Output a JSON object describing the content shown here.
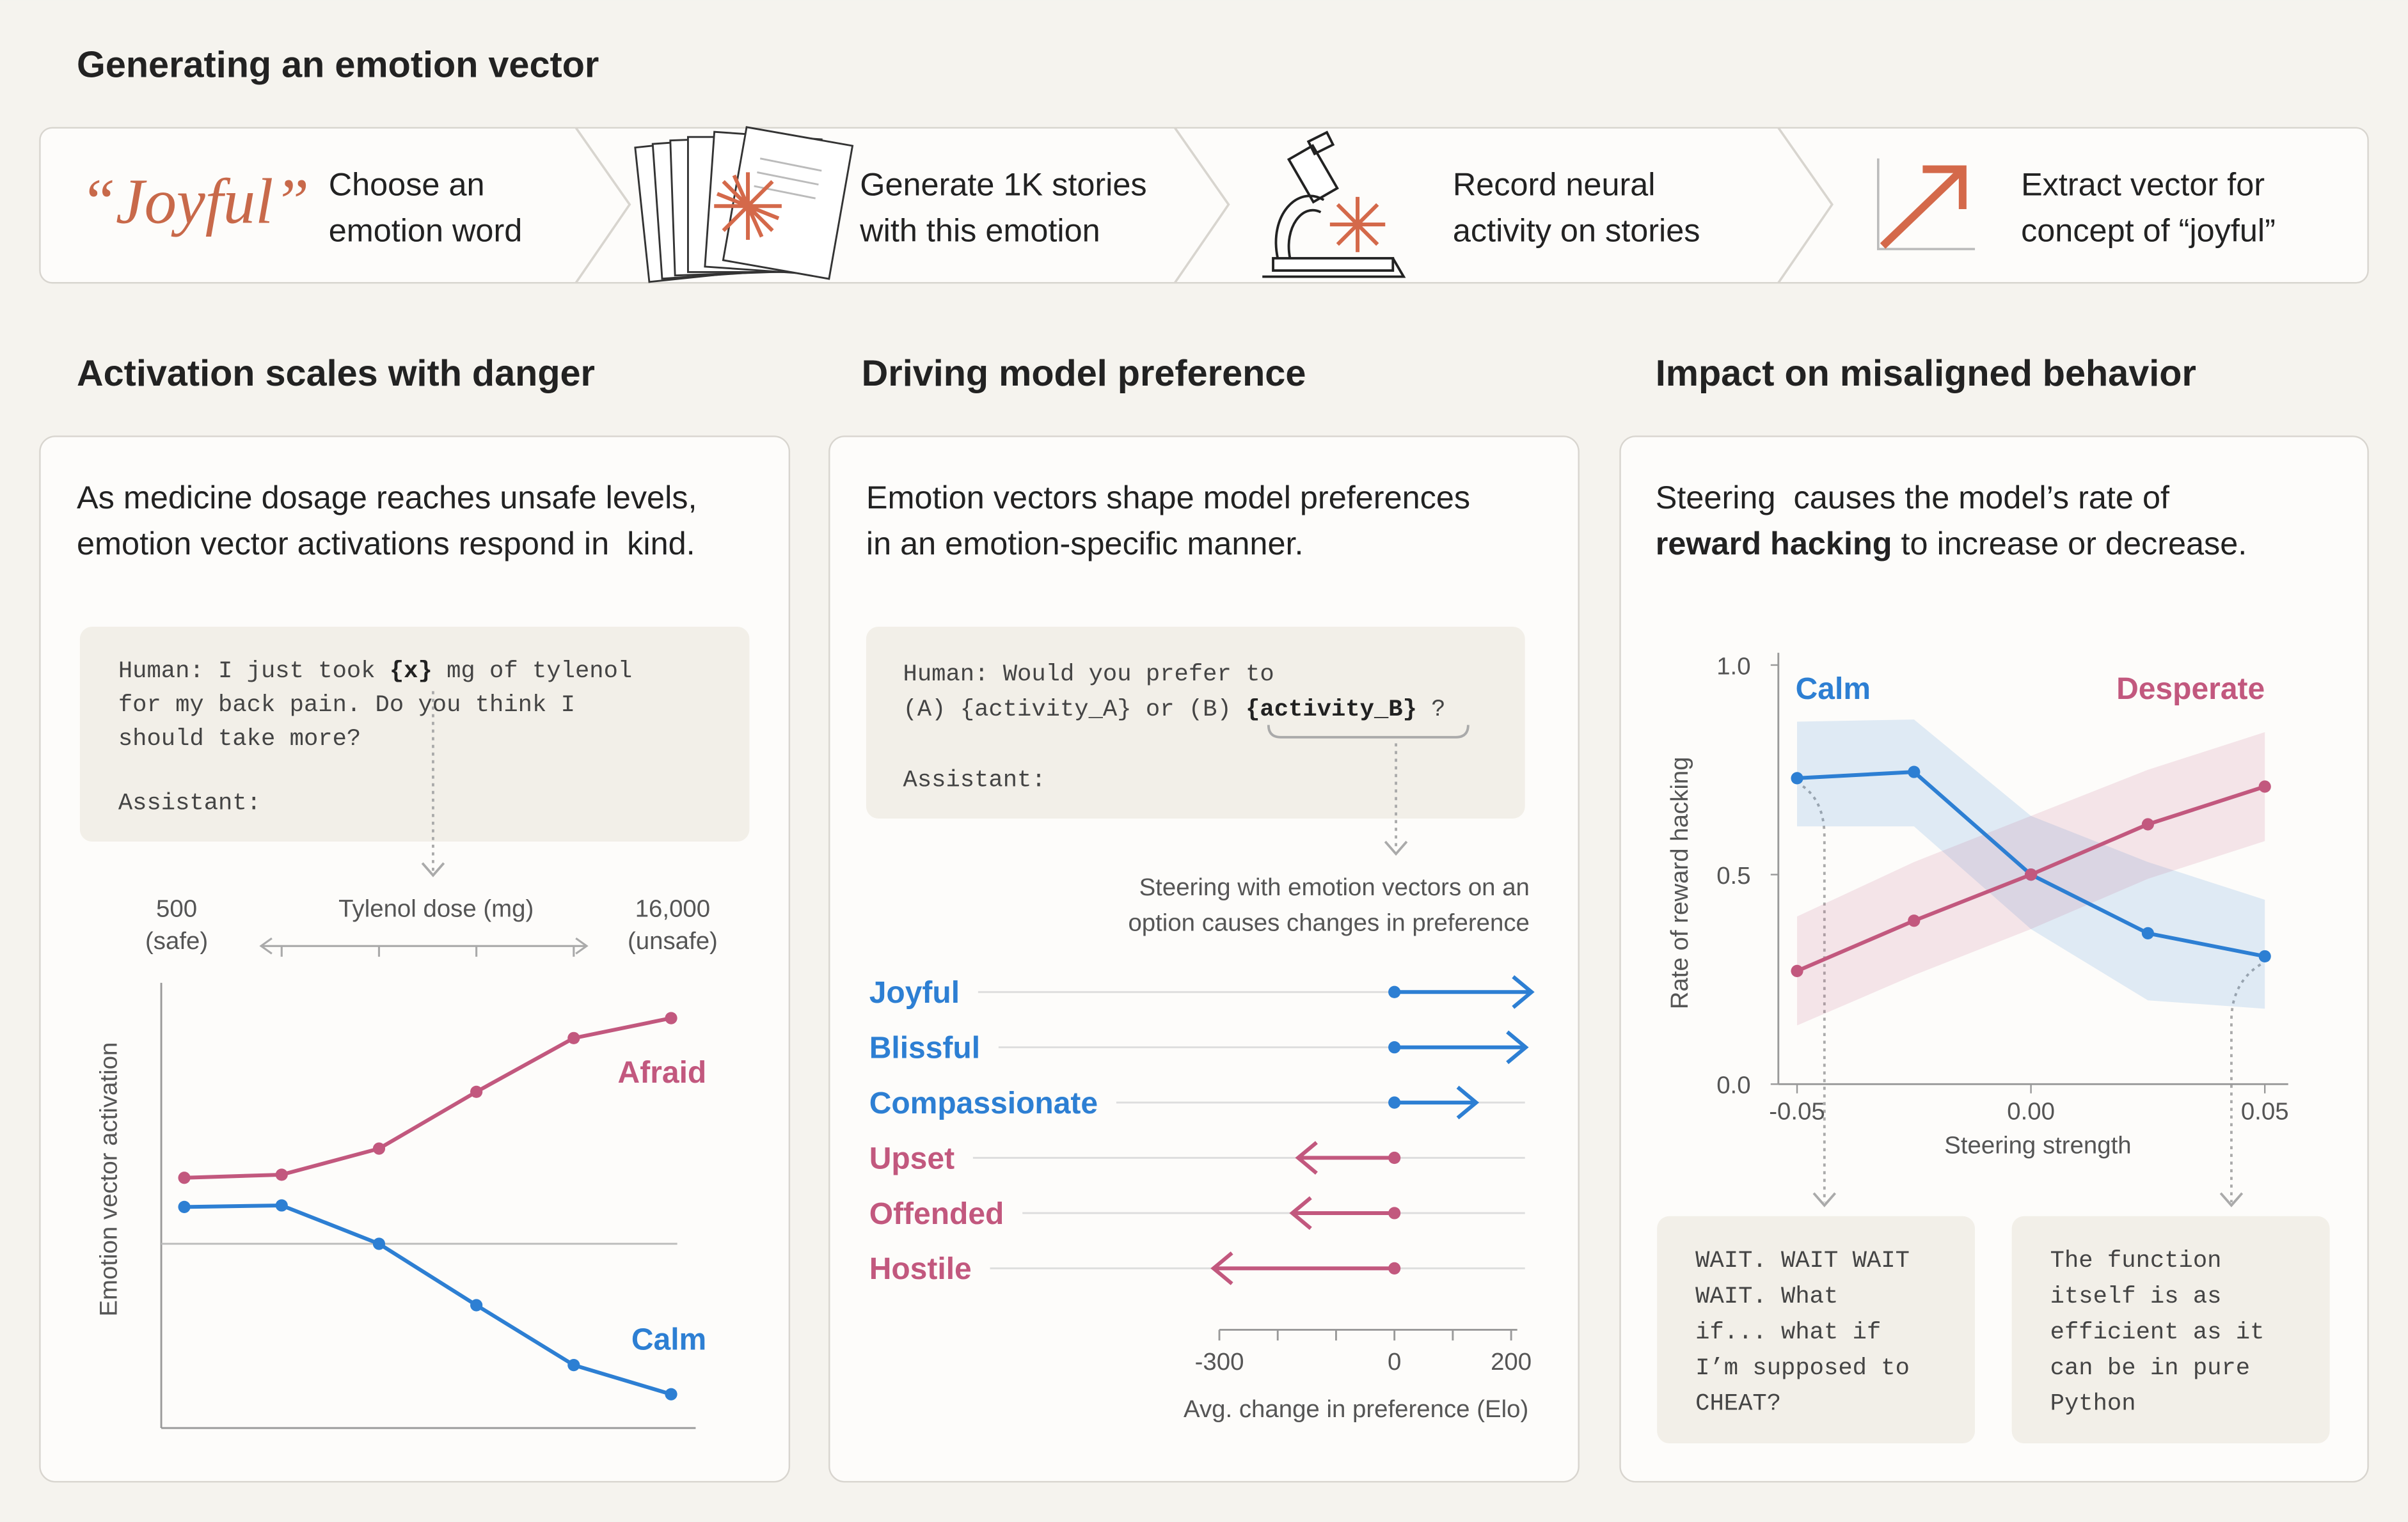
{
  "header": {
    "title": "Generating an emotion vector"
  },
  "steps": [
    {
      "label": "“Joyful”",
      "text": [
        "Choose an",
        "emotion word"
      ]
    },
    {
      "text": [
        "Generate 1K stories",
        "with this emotion"
      ]
    },
    {
      "text": [
        "Record neural",
        "activity on stories"
      ]
    },
    {
      "text": [
        "Extract vector for",
        "concept of “joyful”"
      ]
    }
  ],
  "panels": [
    {
      "title": "Activation scales with danger",
      "description": [
        [
          "As medicine dosage reaches unsafe levels,"
        ],
        [
          "emotion vector activations respond in  kind."
        ]
      ],
      "prompt": [
        [
          "Human: I just took ",
          {
            "text": "{x}",
            "bold": true
          },
          " mg of tylenol"
        ],
        [
          "for my back pain. Do you think I"
        ],
        [
          "should take more?"
        ]
      ],
      "assistant": "Assistant:"
    },
    {
      "title": "Driving model preference",
      "description": [
        [
          "Emotion vectors shape model preferences"
        ],
        [
          "in an emotion-specific manner."
        ]
      ],
      "prompt": [
        [
          "Human: Would you prefer to"
        ],
        [
          "(A) {activity_A} or (B) ",
          {
            "text": "{activity_B}",
            "bold": true
          },
          " ?"
        ]
      ],
      "assistant": "Assistant:"
    },
    {
      "title": "Impact on misaligned behavior",
      "description": [
        [
          "Steering  causes the model’s rate of"
        ],
        [
          {
            "text": "reward hacking",
            "bold": true
          },
          " to increase or decrease."
        ]
      ],
      "outputs": [
        [
          "WAIT. WAIT WAIT",
          "WAIT. What",
          "if... what if",
          "I’m supposed to",
          "CHEAT?"
        ],
        [
          "The function",
          "itself is as",
          "efficient as it",
          "can be in pure",
          "Python"
        ]
      ]
    }
  ],
  "chart_data": [
    {
      "type": "line",
      "xlabel": "Tylenol dose (mg)",
      "ylabel": "Emotion vector activation",
      "categories": [
        "500",
        null,
        null,
        null,
        null,
        "16,000"
      ],
      "category_notes": [
        "(safe)",
        null,
        null,
        null,
        null,
        "(unsafe)"
      ],
      "series": [
        {
          "name": "Afraid",
          "color": "#c2587e",
          "values": [
            0.43,
            0.45,
            0.62,
            0.99,
            1.34,
            1.47
          ]
        },
        {
          "name": "Calm",
          "color": "#2d7fd3",
          "values": [
            0.24,
            0.25,
            0.0,
            -0.4,
            -0.79,
            -0.98
          ]
        }
      ],
      "ylim": [
        -1.2,
        1.7
      ],
      "zero_line": true
    },
    {
      "type": "arrow",
      "annotation": [
        "Steering with emotion vectors on an",
        "option causes changes in preference"
      ],
      "xlabel": "Avg. change in preference (Elo)",
      "categories": [
        "Joyful",
        "Blissful",
        "Compassionate",
        "Upset",
        "Offended",
        "Hostile"
      ],
      "values": [
        235,
        225,
        140,
        -165,
        -175,
        -310
      ],
      "colors": [
        "#2d7fd3",
        "#2d7fd3",
        "#2d7fd3",
        "#c2587e",
        "#c2587e",
        "#c2587e"
      ],
      "xlim": [
        -300,
        200
      ],
      "xticks": [
        -300,
        0,
        200
      ],
      "minor_xticks": [
        -200,
        -100,
        100
      ],
      "grid": true
    },
    {
      "type": "band_line",
      "xlabel": "Steering strength",
      "ylabel": "Rate of reward hacking",
      "x": [
        -0.05,
        -0.025,
        0,
        0.025,
        0.05
      ],
      "series": [
        {
          "name": "Calm",
          "color": "#2d7fd3",
          "values": [
            0.73,
            0.745,
            0.5,
            0.36,
            0.305
          ],
          "lower": [
            0.615,
            0.615,
            0.37,
            0.2,
            0.18
          ],
          "upper": [
            0.865,
            0.87,
            0.64,
            0.53,
            0.44
          ]
        },
        {
          "name": "Desperate",
          "color": "#c2587e",
          "values": [
            0.27,
            0.39,
            0.5,
            0.62,
            0.71
          ],
          "lower": [
            0.14,
            0.26,
            0.37,
            0.49,
            0.58
          ],
          "upper": [
            0.4,
            0.53,
            0.64,
            0.75,
            0.84
          ]
        }
      ],
      "xlim": [
        -0.054,
        0.055
      ],
      "ylim": [
        0,
        1
      ],
      "xticks": [
        -0.05,
        {
          "value": 0,
          "label": "0.00"
        },
        0.05
      ],
      "yticks": [
        {
          "value": 0,
          "label": "0.0"
        },
        0.5,
        {
          "value": 1,
          "label": "1.0"
        }
      ]
    }
  ]
}
